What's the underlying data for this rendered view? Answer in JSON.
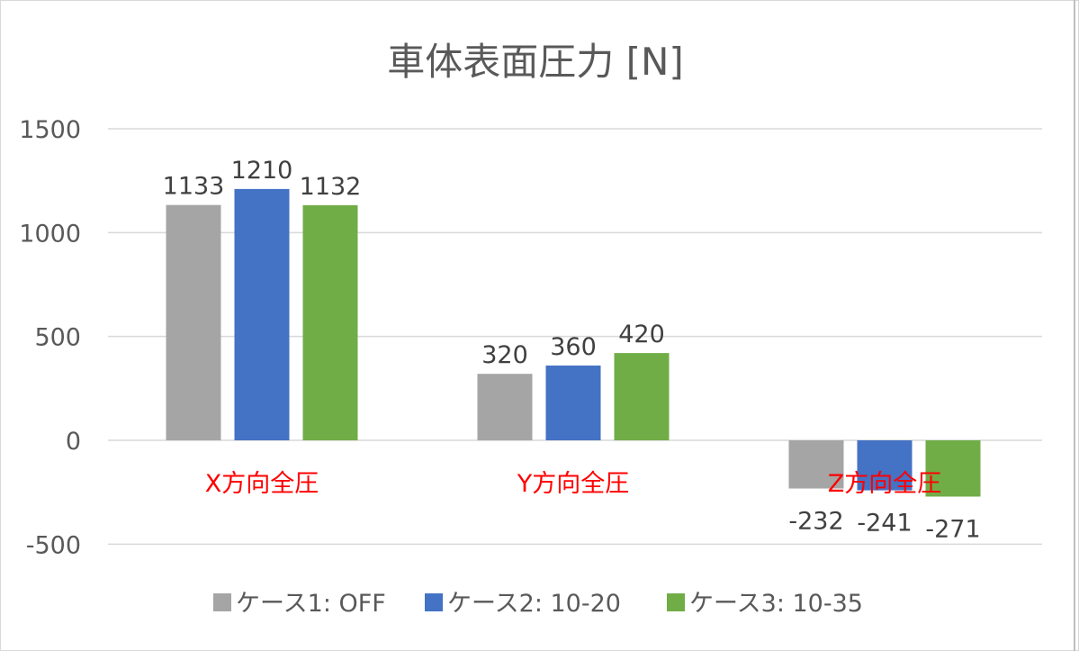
{
  "chart_data": {
    "type": "bar",
    "title": "車体表面圧力 [N]",
    "categories": [
      "X方向全圧",
      "Y方向全圧",
      "Z方向全圧"
    ],
    "series": [
      {
        "name": "ケース1: OFF",
        "values": [
          1133,
          320,
          -232
        ],
        "color": "#a5a5a5"
      },
      {
        "name": "ケース2: 10-20",
        "values": [
          1210,
          360,
          -241
        ],
        "color": "#4472c4"
      },
      {
        "name": "ケース3: 10-35",
        "values": [
          1132,
          420,
          -271
        ],
        "color": "#70ad47"
      }
    ],
    "yticks": [
      -500,
      0,
      500,
      1000,
      1500
    ],
    "ylim": [
      -500,
      1500
    ],
    "grid": true,
    "legend": "bottom",
    "category_label_color": "#ff0000"
  }
}
